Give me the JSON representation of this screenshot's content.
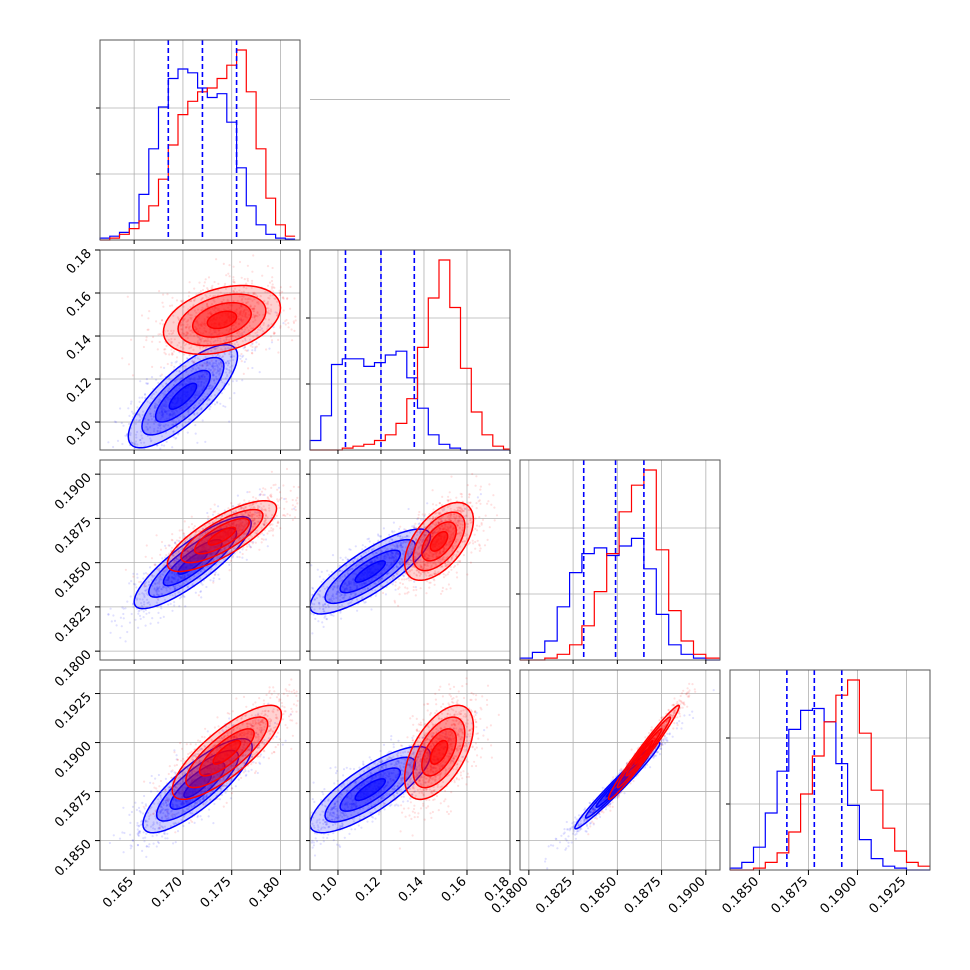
{
  "colors": {
    "series_a": "#0000ff",
    "series_b": "#ff0000",
    "grid": "#b0b0b0",
    "frame": "#555555"
  },
  "chart_data": {
    "type": "corner",
    "layout": "lower-triangular 4x4 matrix",
    "grid": true,
    "legend": "none",
    "title": "",
    "parameter_labels": [
      "",
      "",
      "",
      ""
    ],
    "parameters": [
      {
        "index": 0,
        "range": [
          0.1615,
          0.182
        ],
        "ticks": [
          0.165,
          0.17,
          0.175,
          0.18
        ],
        "tick_labels": [
          "0.165",
          "0.170",
          "0.175",
          "0.180"
        ],
        "hist_bins": [
          0.1615,
          0.1625,
          0.1635,
          0.1645,
          0.1655,
          0.1665,
          0.1675,
          0.1685,
          0.1695,
          0.1705,
          0.1715,
          0.1725,
          0.1735,
          0.1745,
          0.1755,
          0.1765,
          0.1775,
          0.1785,
          0.1795,
          0.1805,
          0.1815
        ],
        "hist_blue": [
          0.01,
          0.02,
          0.04,
          0.09,
          0.24,
          0.48,
          0.7,
          0.85,
          0.9,
          0.88,
          0.8,
          0.75,
          0.77,
          0.62,
          0.38,
          0.18,
          0.08,
          0.03,
          0.01,
          0.005
        ],
        "hist_red": [
          0.0,
          0.01,
          0.03,
          0.06,
          0.1,
          0.18,
          0.32,
          0.5,
          0.66,
          0.73,
          0.78,
          0.8,
          0.85,
          0.92,
          1.0,
          0.78,
          0.48,
          0.22,
          0.08,
          0.02
        ],
        "quantiles_blue": [
          0.1685,
          0.172,
          0.1755
        ]
      },
      {
        "index": 1,
        "range": [
          0.087,
          0.18
        ],
        "ticks": [
          0.1,
          0.12,
          0.14,
          0.16,
          0.18
        ],
        "tick_labels": [
          "0.10",
          "0.12",
          "0.14",
          "0.16",
          "0.18"
        ],
        "hist_bins": [
          0.087,
          0.092,
          0.097,
          0.102,
          0.107,
          0.112,
          0.117,
          0.122,
          0.127,
          0.132,
          0.137,
          0.142,
          0.147,
          0.152,
          0.157,
          0.162,
          0.167,
          0.172,
          0.177,
          0.18
        ],
        "hist_blue": [
          0.05,
          0.18,
          0.45,
          0.48,
          0.48,
          0.44,
          0.46,
          0.5,
          0.52,
          0.38,
          0.22,
          0.08,
          0.03,
          0.01,
          0.0,
          0.0,
          0.0,
          0.0,
          0.0
        ],
        "hist_red": [
          0.0,
          0.0,
          0.0,
          0.01,
          0.02,
          0.03,
          0.05,
          0.08,
          0.14,
          0.27,
          0.54,
          0.8,
          1.0,
          0.75,
          0.43,
          0.2,
          0.08,
          0.02,
          0.005
        ],
        "quantiles_blue": [
          0.1035,
          0.12,
          0.1355
        ]
      },
      {
        "index": 2,
        "range": [
          0.1795,
          0.1908
        ],
        "ticks": [
          0.18,
          0.1825,
          0.185,
          0.1875,
          0.19
        ],
        "tick_labels": [
          "0.1800",
          "0.1825",
          "0.1850",
          "0.1875",
          "0.1900"
        ],
        "hist_bins": [
          0.1795,
          0.1802,
          0.1809,
          0.1816,
          0.1823,
          0.183,
          0.1837,
          0.1844,
          0.1851,
          0.1858,
          0.1865,
          0.1872,
          0.1879,
          0.1886,
          0.1893,
          0.19,
          0.1908
        ],
        "hist_blue": [
          0.01,
          0.04,
          0.1,
          0.28,
          0.46,
          0.56,
          0.59,
          0.55,
          0.6,
          0.64,
          0.48,
          0.24,
          0.08,
          0.03,
          0.01,
          0.0
        ],
        "hist_red": [
          0.0,
          0.0,
          0.01,
          0.03,
          0.08,
          0.18,
          0.36,
          0.56,
          0.78,
          0.92,
          1.0,
          0.58,
          0.26,
          0.1,
          0.03,
          0.01
        ],
        "quantiles_blue": [
          0.1831,
          0.1849,
          0.1865
        ]
      },
      {
        "index": 3,
        "range": [
          0.1835,
          0.1937
        ],
        "ticks": [
          0.185,
          0.1875,
          0.19,
          0.1925
        ],
        "tick_labels": [
          "0.1850",
          "0.1875",
          "0.1900",
          "0.1925"
        ],
        "hist_bins": [
          0.1835,
          0.1841,
          0.1847,
          0.1853,
          0.1859,
          0.1865,
          0.1871,
          0.1877,
          0.1883,
          0.1889,
          0.1895,
          0.1901,
          0.1907,
          0.1913,
          0.1919,
          0.1925,
          0.1931,
          0.1937
        ],
        "hist_blue": [
          0.01,
          0.04,
          0.12,
          0.3,
          0.52,
          0.74,
          0.84,
          0.85,
          0.78,
          0.56,
          0.34,
          0.16,
          0.06,
          0.02,
          0.01,
          0.0,
          0.0
        ],
        "hist_red": [
          0.0,
          0.0,
          0.01,
          0.04,
          0.09,
          0.2,
          0.4,
          0.6,
          0.78,
          0.92,
          1.0,
          0.72,
          0.42,
          0.22,
          0.1,
          0.04,
          0.02
        ],
        "quantiles_blue": [
          0.1864,
          0.1878,
          0.1892
        ]
      }
    ],
    "pairs": [
      {
        "x": 0,
        "y": 1,
        "blue_mean": [
          0.17,
          0.112
        ],
        "blue_sd": [
          0.0028,
          0.012
        ],
        "blue_rho": 0.78,
        "red_mean": [
          0.174,
          0.1475
        ],
        "red_sd": [
          0.003,
          0.008
        ],
        "red_rho": 0.35
      },
      {
        "x": 0,
        "y": 2,
        "blue_mean": [
          0.171,
          0.185
        ],
        "blue_sd": [
          0.003,
          0.0013
        ],
        "blue_rho": 0.85,
        "red_mean": [
          0.174,
          0.1865
        ],
        "red_sd": [
          0.0028,
          0.001
        ],
        "red_rho": 0.78
      },
      {
        "x": 1,
        "y": 2,
        "blue_mean": [
          0.115,
          0.1845
        ],
        "blue_sd": [
          0.014,
          0.0012
        ],
        "blue_rho": 0.82,
        "red_mean": [
          0.147,
          0.1862
        ],
        "red_sd": [
          0.008,
          0.0011
        ],
        "red_rho": 0.55
      },
      {
        "x": 0,
        "y": 3,
        "blue_mean": [
          0.1715,
          0.1878
        ],
        "blue_sd": [
          0.0028,
          0.0012
        ],
        "blue_rho": 0.82,
        "red_mean": [
          0.1745,
          0.1895
        ],
        "red_sd": [
          0.0028,
          0.0012
        ],
        "red_rho": 0.8
      },
      {
        "x": 1,
        "y": 3,
        "blue_mean": [
          0.115,
          0.1876
        ],
        "blue_sd": [
          0.014,
          0.0011
        ],
        "blue_rho": 0.8,
        "red_mean": [
          0.147,
          0.1895
        ],
        "red_sd": [
          0.008,
          0.0012
        ],
        "red_rho": 0.55
      },
      {
        "x": 2,
        "y": 3,
        "blue_mean": [
          0.185,
          0.1878
        ],
        "blue_sd": [
          0.0012,
          0.0011
        ],
        "blue_rho": 0.98,
        "red_mean": [
          0.1865,
          0.1895
        ],
        "red_sd": [
          0.001,
          0.0012
        ],
        "red_rho": 0.98
      }
    ]
  }
}
